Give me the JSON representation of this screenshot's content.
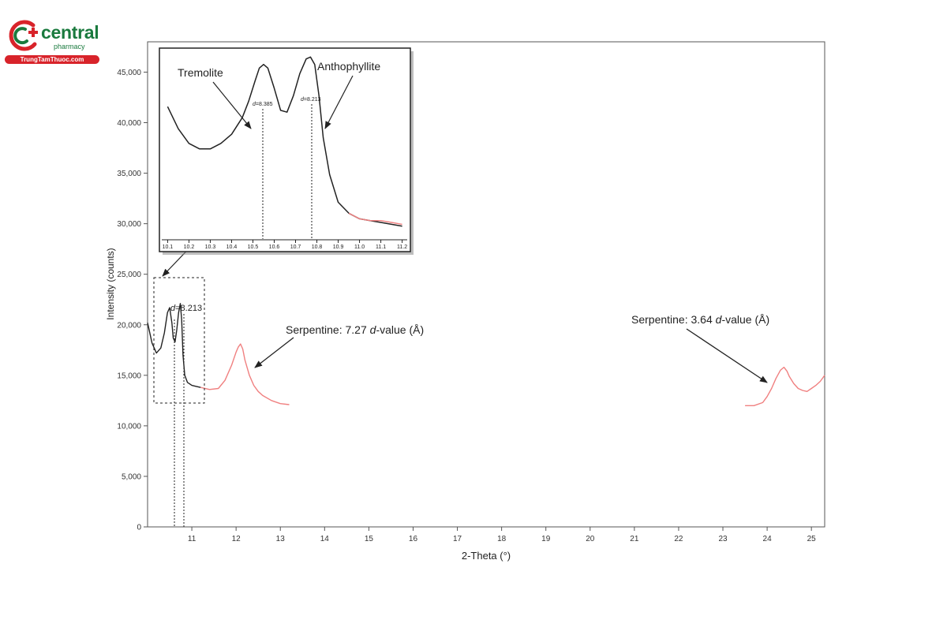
{
  "logo": {
    "brand": "central",
    "sub": "pharmacy",
    "strip": "TrungTamThuoc.com"
  },
  "chart_data": {
    "type": "line",
    "xlabel": "2-Theta (°)",
    "ylabel": "Intensity (counts)",
    "xlim": [
      10,
      25.3
    ],
    "ylim": [
      0,
      48000
    ],
    "xticks": [
      11,
      12,
      13,
      14,
      15,
      16,
      17,
      18,
      19,
      20,
      21,
      22,
      23,
      24,
      25
    ],
    "yticks": [
      0,
      5000,
      10000,
      15000,
      20000,
      25000,
      30000,
      35000,
      40000,
      45000
    ],
    "ytick_labels": [
      "0",
      "5,000",
      "10,000",
      "15,000",
      "20,000",
      "25,000",
      "30,000",
      "35,000",
      "40,000",
      "45,000"
    ],
    "grid": false,
    "series": [
      {
        "color": "#222222",
        "x": [
          10.0,
          10.1,
          10.2,
          10.3,
          10.38,
          10.45,
          10.5,
          10.55,
          10.58,
          10.62,
          10.66,
          10.7,
          10.74,
          10.77,
          10.8,
          10.84,
          10.9,
          11.0,
          11.1,
          11.2
        ],
        "y": [
          20200,
          18200,
          17200,
          17700,
          19200,
          21200,
          21700,
          20200,
          18700,
          18300,
          19500,
          21200,
          22100,
          20500,
          17000,
          15000,
          14300,
          14000,
          13900,
          13800
        ]
      },
      {
        "color": "#f08080",
        "x": [
          11.2,
          11.4,
          11.6,
          11.75,
          11.9,
          12.0,
          12.05,
          12.1,
          12.15,
          12.2,
          12.3,
          12.4,
          12.5,
          12.6,
          12.8,
          13.0,
          13.2
        ],
        "y": [
          13800,
          13600,
          13700,
          14500,
          16000,
          17300,
          17800,
          18100,
          17600,
          16500,
          15000,
          14000,
          13400,
          13000,
          12500,
          12200,
          12100
        ]
      },
      {
        "color": "#f08080",
        "x": [
          23.5,
          23.7,
          23.9,
          24.0,
          24.1,
          24.2,
          24.3,
          24.38,
          24.45,
          24.5,
          24.6,
          24.7,
          24.8,
          24.9,
          25.0,
          25.1,
          25.2,
          25.3
        ],
        "y": [
          12000,
          12000,
          12300,
          12900,
          13700,
          14700,
          15500,
          15800,
          15400,
          14900,
          14200,
          13700,
          13500,
          13400,
          13700,
          14000,
          14400,
          15000
        ]
      }
    ],
    "annotations": [
      {
        "label_plain": "Serpentine: 7.27 ",
        "label_italic": "d",
        "label_rest": "-value (Å)"
      },
      {
        "label_plain": "Serpentine: 3.64 ",
        "label_italic": "d",
        "label_rest": "-value (Å)"
      },
      {
        "label_italic": "d",
        "label_rest": "=8.213"
      }
    ],
    "inset": {
      "xlim": [
        10.08,
        11.22
      ],
      "xticks": [
        10.1,
        10.2,
        10.3,
        10.4,
        10.5,
        10.6,
        10.7,
        10.8,
        10.9,
        11.0,
        11.1,
        11.2
      ],
      "xtick_labels": [
        "10.1",
        "10.2",
        "10.3",
        "10.4",
        "10.5",
        "10.6",
        "10.7",
        "10.8",
        "10.9",
        "11.0",
        "11.1",
        "11.2"
      ],
      "labels": {
        "tremolite": "Tremolite",
        "anthophyllite": "Anthophyllite",
        "d1_italic": "d",
        "d1_rest": "=8.385",
        "d2_italic": "d",
        "d2_rest": "=8.213"
      },
      "curve": {
        "x": [
          10.1,
          10.15,
          10.2,
          10.25,
          10.3,
          10.35,
          10.4,
          10.45,
          10.48,
          10.51,
          10.53,
          10.55,
          10.57,
          10.6,
          10.63,
          10.66,
          10.69,
          10.72,
          10.75,
          10.77,
          10.79,
          10.81,
          10.83,
          10.86,
          10.9,
          10.95,
          11.0,
          11.05,
          11.1,
          11.15,
          11.2
        ],
        "y": [
          0.72,
          0.6,
          0.52,
          0.49,
          0.49,
          0.52,
          0.57,
          0.66,
          0.75,
          0.86,
          0.93,
          0.95,
          0.93,
          0.82,
          0.7,
          0.69,
          0.78,
          0.9,
          0.98,
          0.99,
          0.95,
          0.78,
          0.55,
          0.35,
          0.2,
          0.14,
          0.11,
          0.1,
          0.09,
          0.08,
          0.07
        ]
      },
      "red_tail": {
        "x": [
          10.95,
          11.0,
          11.05,
          11.1,
          11.15,
          11.2
        ],
        "y": [
          0.14,
          0.11,
          0.1,
          0.1,
          0.09,
          0.08
        ]
      }
    }
  }
}
